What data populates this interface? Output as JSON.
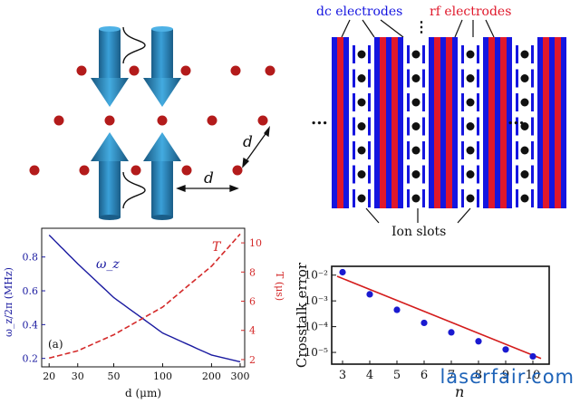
{
  "lattice": {
    "distance_label": "d",
    "diagonal_label": "d",
    "colors": {
      "ion": "#b31b1b",
      "arrow": "#2a87c0",
      "arrow_dark": "#1a5d88"
    }
  },
  "trap": {
    "dc_label": "dc electrodes",
    "rf_label": "rf electrodes",
    "slots_label": "Ion slots",
    "ellipsis_left": "...",
    "ellipsis_right": "...",
    "ellipsis_top": "⋮",
    "colors": {
      "dc": "#1515e0",
      "rf": "#e0182b",
      "ion": "#111111"
    }
  },
  "freq_chart": {
    "panel_label": "(a)",
    "series_omega_label": "ω_z",
    "series_T_label": "T",
    "ylabel_left": "ω_z/2π (MHz)",
    "ylabel_right": "T (μs)",
    "xlabel": "d (μm)",
    "x_ticks": [
      "20",
      "30",
      "50",
      "100",
      "200",
      "300"
    ],
    "yleft_ticks": [
      "0.2",
      "0.4",
      "0.6",
      "0.8"
    ],
    "yright_ticks": [
      "2",
      "4",
      "6",
      "8",
      "10"
    ],
    "colors": {
      "omega": "#1a1aa0",
      "T": "#d42a2a"
    }
  },
  "crosstalk_chart": {
    "ylabel": "Crosstalk error",
    "xlabel": "n",
    "x_ticks": [
      "3",
      "4",
      "5",
      "6",
      "7",
      "8",
      "9",
      "10"
    ],
    "y_ticks": [
      "10⁻²",
      "10⁻³",
      "10⁻⁴",
      "10⁻⁵"
    ],
    "colors": {
      "fit": "#d41c1c",
      "points": "#1a1ad0"
    }
  },
  "chart_data": [
    {
      "type": "line",
      "x": [
        20,
        30,
        50,
        100,
        200,
        300
      ],
      "series": [
        {
          "name": "ω_z",
          "axis": "left",
          "values": [
            0.93,
            0.76,
            0.56,
            0.35,
            0.22,
            0.18
          ]
        },
        {
          "name": "T",
          "axis": "right",
          "values": [
            2.1,
            2.6,
            3.7,
            5.6,
            8.4,
            10.6
          ]
        }
      ],
      "xlabel": "d (μm)",
      "ylabel": "ω_z/2π (MHz)",
      "ylabel_right": "T (μs)",
      "xscale": "log",
      "xlim": [
        18,
        320
      ],
      "ylim": [
        0.15,
        0.97
      ],
      "ylim_right": [
        1.5,
        11
      ]
    },
    {
      "type": "scatter",
      "x": [
        3,
        4,
        5,
        6,
        7,
        8,
        9,
        10
      ],
      "series": [
        {
          "values": [
            0.013,
            0.0018,
            0.00045,
            0.00014,
            6e-05,
            2.7e-05,
            1.3e-05,
            7e-06
          ]
        }
      ],
      "fit_line": {
        "x": [
          2.8,
          10.3
        ],
        "y": [
          0.009,
          5.8e-06
        ]
      },
      "xlabel": "n",
      "ylabel": "Crosstalk error",
      "yscale": "log",
      "xlim": [
        2.6,
        10.6
      ],
      "ylim": [
        3.5e-06,
        0.022
      ]
    }
  ],
  "watermark": "laserfair.com"
}
